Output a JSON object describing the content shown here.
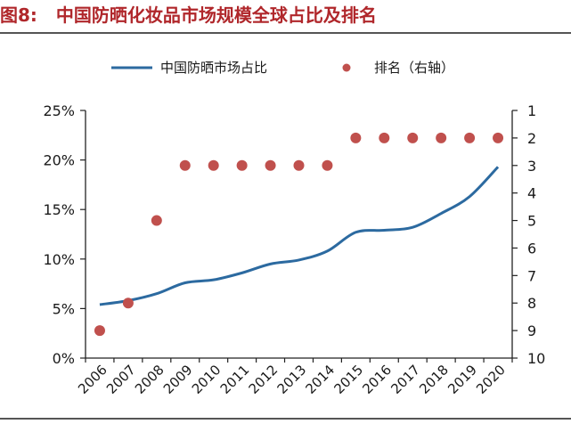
{
  "figure": {
    "label": "图8:",
    "title": "中国防晒化妆品市场规模全球占比及排名"
  },
  "chart_data": {
    "type": "line",
    "categories": [
      "2006",
      "2007",
      "2008",
      "2009",
      "2010",
      "2011",
      "2012",
      "2013",
      "2014",
      "2015",
      "2016",
      "2017",
      "2018",
      "2019",
      "2020"
    ],
    "series": [
      {
        "name": "中国防晒市场占比",
        "kind": "line",
        "axis": "left",
        "color": "#2c6aa0",
        "values": [
          5.4,
          5.8,
          6.5,
          7.6,
          7.9,
          8.6,
          9.5,
          9.9,
          10.8,
          12.7,
          12.9,
          13.2,
          14.6,
          16.3,
          19.3
        ]
      },
      {
        "name": "排名（右轴）",
        "kind": "scatter",
        "axis": "right",
        "color": "#c0504d",
        "values": [
          9,
          8,
          5,
          3,
          3,
          3,
          3,
          3,
          3,
          2,
          2,
          2,
          2,
          2,
          2
        ]
      }
    ],
    "y_left": {
      "range": [
        0,
        25
      ],
      "ticks": [
        0,
        5,
        10,
        15,
        20,
        25
      ],
      "tick_labels": [
        "0%",
        "5%",
        "10%",
        "15%",
        "20%",
        "25%"
      ]
    },
    "y_right": {
      "range": [
        1,
        10
      ],
      "inverted": true,
      "ticks": [
        1,
        2,
        3,
        4,
        5,
        6,
        7,
        8,
        9,
        10
      ],
      "tick_labels": [
        "1",
        "2",
        "3",
        "4",
        "5",
        "6",
        "7",
        "8",
        "9",
        "10"
      ]
    },
    "legend": {
      "placement": "top-center",
      "items": [
        "中国防晒市场占比",
        "排名（右轴）"
      ]
    },
    "grid": false
  }
}
